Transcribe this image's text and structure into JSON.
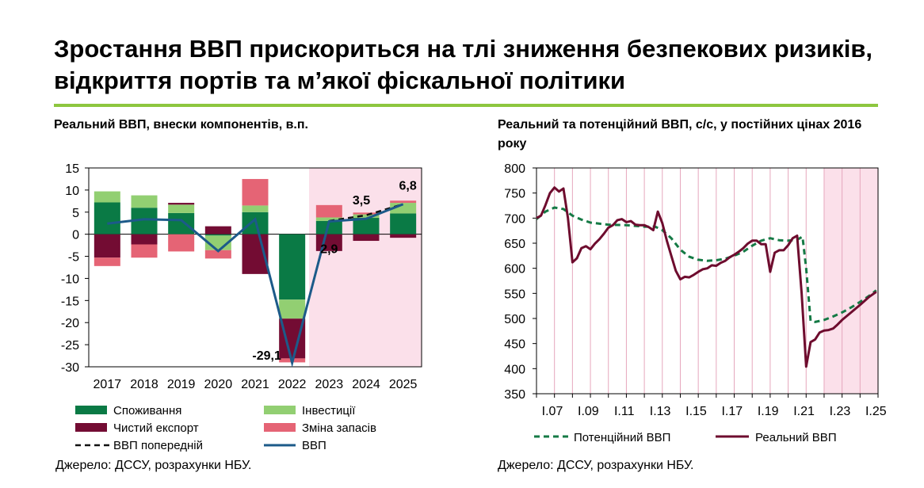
{
  "title": "Зростання ВВП прискориться на тлі зниження безпекових ризиків, відкриття портів та м’якої фіскальної політики",
  "colors": {
    "consumption": "#0a7a45",
    "investment": "#92cf72",
    "net_export": "#730c33",
    "inventory": "#e56475",
    "gdp_line": "#1c5a89",
    "forecast_band": "#fbe0ea",
    "potential": "#157a45",
    "real": "#6e0c2e",
    "accent": "#8dc63f"
  },
  "chart_data": [
    {
      "type": "bar",
      "stacked": true,
      "title": "Реальний ВВП, внески компонентів, в.п.",
      "categories": [
        "2017",
        "2018",
        "2019",
        "2020",
        "2021",
        "2022",
        "2023",
        "2024",
        "2025"
      ],
      "ylim": [
        -30,
        15
      ],
      "yticks": [
        15,
        10,
        5,
        0,
        -5,
        -10,
        -15,
        -20,
        -25,
        -30
      ],
      "forecast_from": "2023",
      "series": [
        {
          "name": "Споживання",
          "key": "consumption",
          "values": [
            7.2,
            6.0,
            4.8,
            -0.3,
            5.0,
            -14.8,
            3.0,
            3.7,
            4.7
          ]
        },
        {
          "name": "Інвестиції",
          "key": "investment",
          "values": [
            2.5,
            2.8,
            1.9,
            -3.3,
            1.5,
            -4.3,
            0.8,
            0.8,
            2.4
          ]
        },
        {
          "name": "Чистий експорт",
          "key": "net_export",
          "values": [
            -5.3,
            -2.3,
            0.4,
            1.8,
            -9.0,
            -9.0,
            -3.8,
            -1.5,
            -0.8
          ]
        },
        {
          "name": "Зміна запасів",
          "key": "inventory",
          "values": [
            -1.9,
            -3.0,
            -3.9,
            -1.9,
            6.0,
            -0.9,
            2.8,
            0.4,
            0.5
          ]
        }
      ],
      "lines": [
        {
          "name": "ВВП попередній",
          "key": "previous",
          "dashed": true,
          "values": [
            null,
            null,
            null,
            null,
            null,
            null,
            3.0,
            4.3,
            6.8
          ]
        },
        {
          "name": "ВВП",
          "key": "gdp",
          "values": [
            2.4,
            3.4,
            3.2,
            -3.8,
            3.4,
            -29.1,
            2.9,
            3.5,
            6.8
          ]
        }
      ],
      "data_labels": [
        {
          "category": "2022",
          "value": -29.1,
          "text": "-29,1"
        },
        {
          "category": "2023",
          "value": 2.9,
          "text": "2,9"
        },
        {
          "category": "2024",
          "value": 3.5,
          "text": "3,5"
        },
        {
          "category": "2025",
          "value": 6.8,
          "text": "6,8"
        }
      ],
      "legend": [
        "Споживання",
        "Інвестиції",
        "Чистий експорт",
        "Зміна запасів",
        "ВВП попередній",
        "ВВП"
      ],
      "source": "Джерело: ДССУ, розрахунки НБУ."
    },
    {
      "type": "line",
      "title": "Реальний та потенційний ВВП, с/с, у постійних цінах 2016 року",
      "x_start": 2007,
      "x_end": 2026,
      "ylim": [
        350,
        800
      ],
      "yticks": [
        800,
        750,
        700,
        650,
        600,
        550,
        500,
        450,
        400,
        350
      ],
      "xtick_labels": [
        "I.07",
        "I.09",
        "I.11",
        "I.13",
        "I.15",
        "I.17",
        "I.19",
        "I.21",
        "I.23",
        "I.25"
      ],
      "xtick_years": [
        2007,
        2009,
        2011,
        2013,
        2015,
        2017,
        2019,
        2021,
        2023,
        2025
      ],
      "forecast_from": 2023.0,
      "series": [
        {
          "name": "Потенційний ВВП",
          "key": "potential",
          "dashed": true,
          "points": [
            [
              2007.0,
              698
            ],
            [
              2007.5,
              713
            ],
            [
              2008.0,
              721
            ],
            [
              2008.5,
              718
            ],
            [
              2009.0,
              705
            ],
            [
              2009.5,
              697
            ],
            [
              2010.0,
              691
            ],
            [
              2011.0,
              687
            ],
            [
              2012.0,
              686
            ],
            [
              2013.0,
              683
            ],
            [
              2013.6,
              683
            ],
            [
              2014.0,
              676
            ],
            [
              2014.5,
              660
            ],
            [
              2015.0,
              637
            ],
            [
              2015.5,
              623
            ],
            [
              2016.0,
              617
            ],
            [
              2016.5,
              615
            ],
            [
              2017.0,
              616
            ],
            [
              2017.5,
              619
            ],
            [
              2018.0,
              625
            ],
            [
              2018.5,
              633
            ],
            [
              2019.0,
              645
            ],
            [
              2019.5,
              655
            ],
            [
              2020.0,
              660
            ],
            [
              2020.5,
              656
            ],
            [
              2021.0,
              655
            ],
            [
              2021.5,
              657
            ],
            [
              2021.8,
              663
            ],
            [
              2022.0,
              600
            ],
            [
              2022.25,
              495
            ],
            [
              2022.5,
              493
            ],
            [
              2023.0,
              497
            ],
            [
              2023.5,
              504
            ],
            [
              2024.0,
              512
            ],
            [
              2024.5,
              522
            ],
            [
              2025.0,
              533
            ],
            [
              2025.5,
              545
            ],
            [
              2025.9,
              556
            ]
          ]
        },
        {
          "name": "Реальний ВВП",
          "key": "real",
          "points": [
            [
              2007.0,
              700
            ],
            [
              2007.25,
              705
            ],
            [
              2007.5,
              726
            ],
            [
              2007.75,
              750
            ],
            [
              2008.0,
              761
            ],
            [
              2008.25,
              753
            ],
            [
              2008.5,
              759
            ],
            [
              2008.75,
              700
            ],
            [
              2009.0,
              612
            ],
            [
              2009.25,
              620
            ],
            [
              2009.5,
              640
            ],
            [
              2009.75,
              644
            ],
            [
              2010.0,
              638
            ],
            [
              2010.25,
              649
            ],
            [
              2010.5,
              658
            ],
            [
              2010.75,
              669
            ],
            [
              2011.0,
              681
            ],
            [
              2011.25,
              686
            ],
            [
              2011.5,
              696
            ],
            [
              2011.75,
              698
            ],
            [
              2012.0,
              692
            ],
            [
              2012.25,
              694
            ],
            [
              2012.5,
              687
            ],
            [
              2012.75,
              686
            ],
            [
              2013.0,
              686
            ],
            [
              2013.25,
              682
            ],
            [
              2013.5,
              676
            ],
            [
              2013.75,
              713
            ],
            [
              2014.0,
              690
            ],
            [
              2014.25,
              655
            ],
            [
              2014.5,
              625
            ],
            [
              2014.75,
              595
            ],
            [
              2015.0,
              578
            ],
            [
              2015.25,
              583
            ],
            [
              2015.5,
              582
            ],
            [
              2015.75,
              587
            ],
            [
              2016.0,
              593
            ],
            [
              2016.25,
              598
            ],
            [
              2016.5,
              600
            ],
            [
              2016.75,
              606
            ],
            [
              2017.0,
              605
            ],
            [
              2017.25,
              611
            ],
            [
              2017.5,
              615
            ],
            [
              2017.75,
              622
            ],
            [
              2018.0,
              627
            ],
            [
              2018.25,
              633
            ],
            [
              2018.5,
              640
            ],
            [
              2018.75,
              649
            ],
            [
              2019.0,
              655
            ],
            [
              2019.25,
              655
            ],
            [
              2019.5,
              648
            ],
            [
              2019.75,
              648
            ],
            [
              2020.0,
              593
            ],
            [
              2020.25,
              631
            ],
            [
              2020.5,
              636
            ],
            [
              2020.75,
              636
            ],
            [
              2021.0,
              646
            ],
            [
              2021.25,
              660
            ],
            [
              2021.5,
              665
            ],
            [
              2021.75,
              550
            ],
            [
              2022.0,
              404
            ],
            [
              2022.25,
              453
            ],
            [
              2022.5,
              458
            ],
            [
              2022.75,
              472
            ],
            [
              2023.0,
              476
            ],
            [
              2023.25,
              477
            ],
            [
              2023.5,
              480
            ],
            [
              2023.75,
              488
            ],
            [
              2024.0,
              497
            ],
            [
              2024.5,
              512
            ],
            [
              2025.0,
              527
            ],
            [
              2025.5,
              543
            ],
            [
              2025.9,
              553
            ]
          ]
        }
      ],
      "legend": [
        "Потенційний ВВП",
        "Реальний ВВП"
      ],
      "source": "Джерело: ДССУ, розрахунки НБУ."
    }
  ]
}
